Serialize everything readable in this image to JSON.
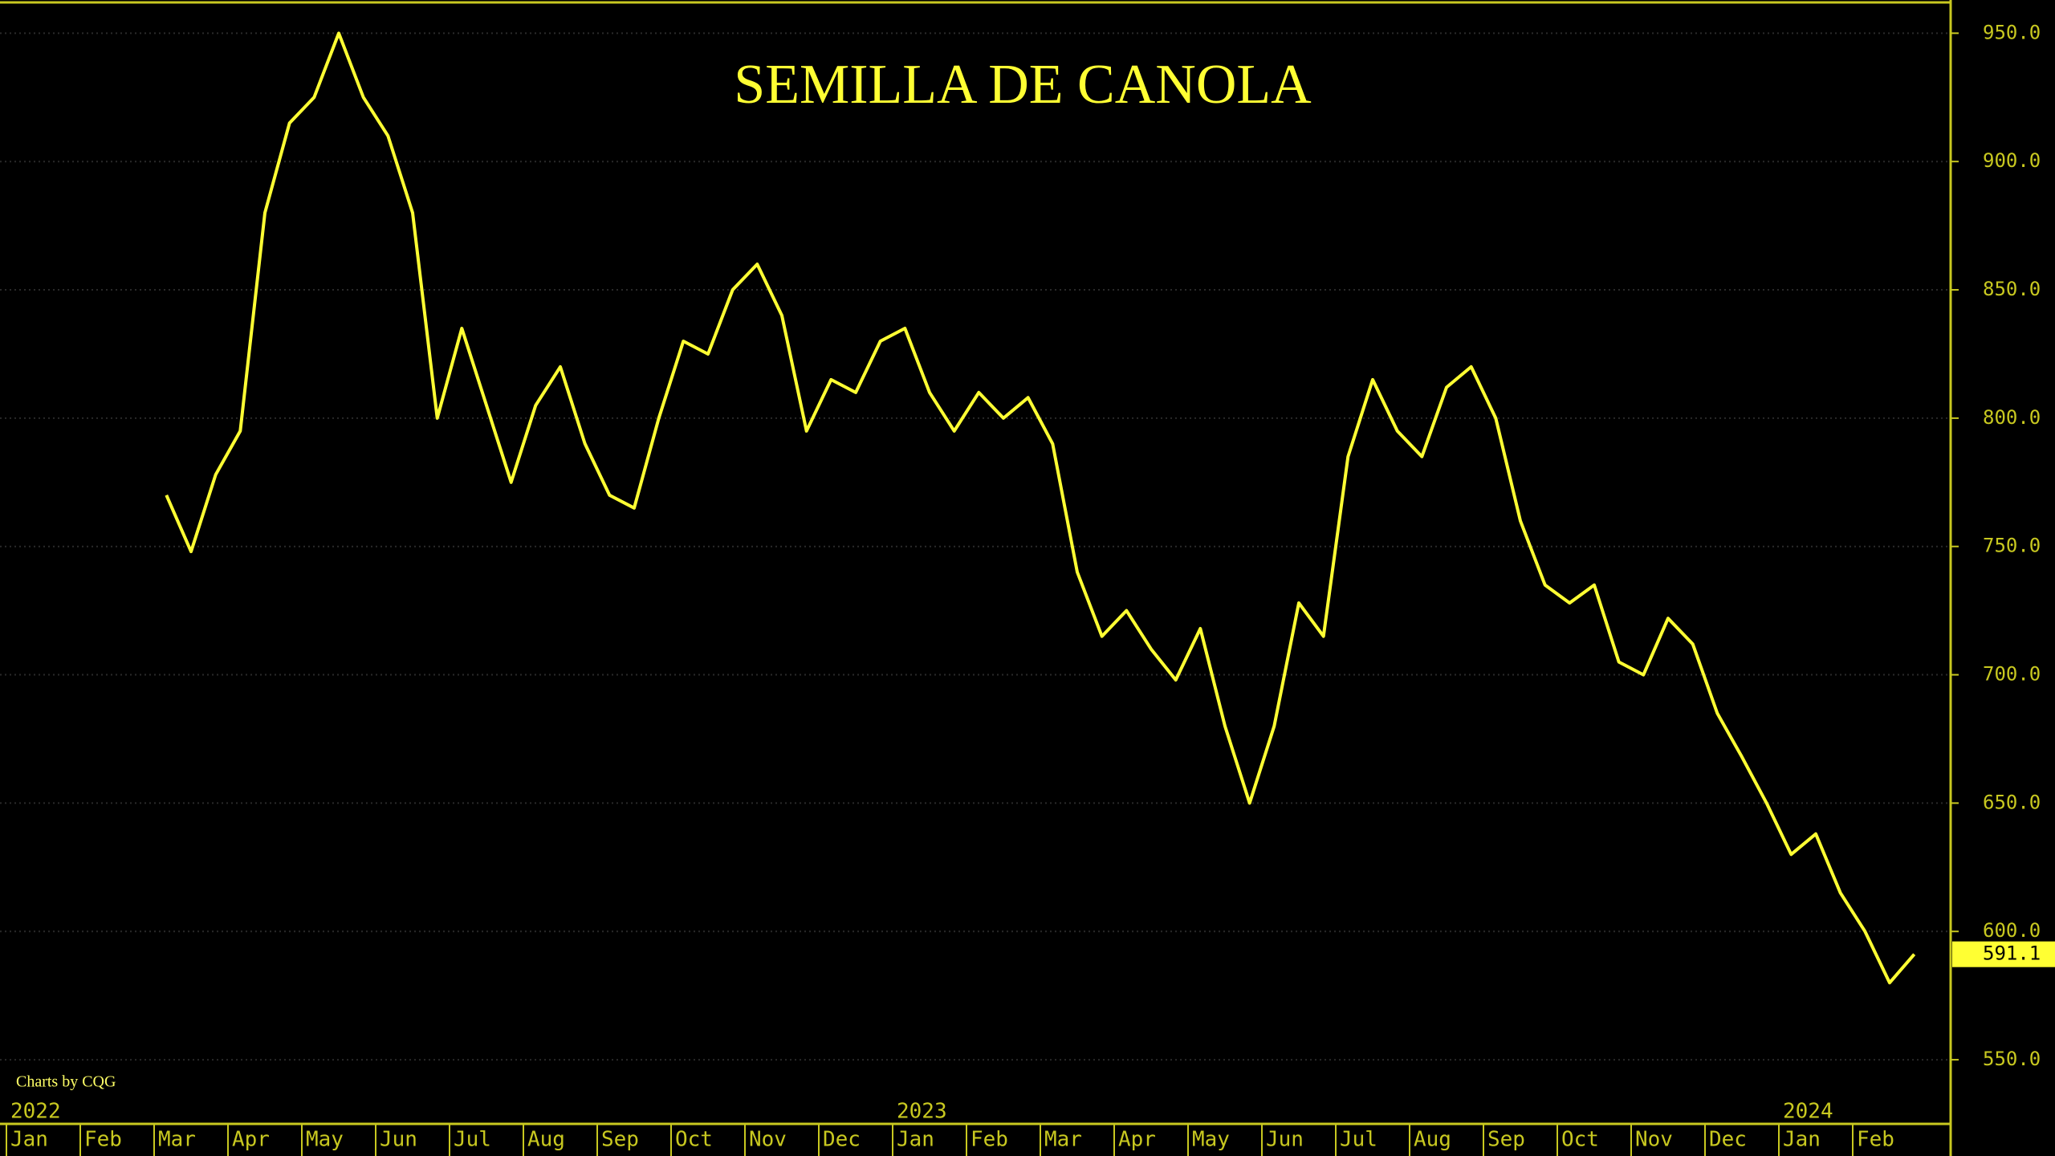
{
  "chart_data": {
    "type": "line",
    "title": "SEMILLA DE CANOLA",
    "source": "Charts by CQG",
    "x": [
      "2022-03",
      "2022-03",
      "2022-03",
      "2022-04",
      "2022-04",
      "2022-04",
      "2022-05",
      "2022-05",
      "2022-05",
      "2022-06",
      "2022-06",
      "2022-06",
      "2022-07",
      "2022-07",
      "2022-07",
      "2022-08",
      "2022-08",
      "2022-08",
      "2022-09",
      "2022-09",
      "2022-09",
      "2022-10",
      "2022-10",
      "2022-10",
      "2022-11",
      "2022-11",
      "2022-11",
      "2022-12",
      "2022-12",
      "2022-12",
      "2023-01",
      "2023-01",
      "2023-01",
      "2023-02",
      "2023-02",
      "2023-02",
      "2023-03",
      "2023-03",
      "2023-03",
      "2023-04",
      "2023-04",
      "2023-04",
      "2023-05",
      "2023-05",
      "2023-05",
      "2023-06",
      "2023-06",
      "2023-06",
      "2023-07",
      "2023-07",
      "2023-07",
      "2023-08",
      "2023-08",
      "2023-08",
      "2023-09",
      "2023-09",
      "2023-09",
      "2023-10",
      "2023-10",
      "2023-10",
      "2023-11",
      "2023-11",
      "2023-11",
      "2023-12",
      "2023-12",
      "2023-12",
      "2024-01",
      "2024-01",
      "2024-01",
      "2024-02",
      "2024-02",
      "2024-02"
    ],
    "series": [
      {
        "name": "Canola",
        "color": "#ffff33",
        "values": [
          770,
          748,
          778,
          795,
          880,
          915,
          925,
          950,
          925,
          910,
          880,
          800,
          835,
          805,
          775,
          805,
          820,
          790,
          770,
          765,
          800,
          830,
          825,
          850,
          860,
          840,
          795,
          815,
          810,
          830,
          835,
          810,
          795,
          810,
          800,
          808,
          790,
          740,
          715,
          725,
          710,
          698,
          718,
          680,
          650,
          680,
          728,
          715,
          785,
          815,
          795,
          785,
          812,
          820,
          800,
          760,
          735,
          728,
          735,
          705,
          700,
          722,
          712,
          685,
          668,
          650,
          630,
          638,
          615,
          600,
          580,
          591.1
        ]
      }
    ],
    "xlim": [
      "2022-01",
      "2024-03"
    ],
    "xticks": [
      {
        "value": "2022-01",
        "label": "Jan"
      },
      {
        "value": "2022-02",
        "label": "Feb"
      },
      {
        "value": "2022-03",
        "label": "Mar"
      },
      {
        "value": "2022-04",
        "label": "Apr"
      },
      {
        "value": "2022-05",
        "label": "May"
      },
      {
        "value": "2022-06",
        "label": "Jun"
      },
      {
        "value": "2022-07",
        "label": "Jul"
      },
      {
        "value": "2022-08",
        "label": "Aug"
      },
      {
        "value": "2022-09",
        "label": "Sep"
      },
      {
        "value": "2022-10",
        "label": "Oct"
      },
      {
        "value": "2022-11",
        "label": "Nov"
      },
      {
        "value": "2022-12",
        "label": "Dec"
      },
      {
        "value": "2023-01",
        "label": "Jan"
      },
      {
        "value": "2023-02",
        "label": "Feb"
      },
      {
        "value": "2023-03",
        "label": "Mar"
      },
      {
        "value": "2023-04",
        "label": "Apr"
      },
      {
        "value": "2023-05",
        "label": "May"
      },
      {
        "value": "2023-06",
        "label": "Jun"
      },
      {
        "value": "2023-07",
        "label": "Jul"
      },
      {
        "value": "2023-08",
        "label": "Aug"
      },
      {
        "value": "2023-09",
        "label": "Sep"
      },
      {
        "value": "2023-10",
        "label": "Oct"
      },
      {
        "value": "2023-11",
        "label": "Nov"
      },
      {
        "value": "2023-12",
        "label": "Dec"
      },
      {
        "value": "2024-01",
        "label": "Jan"
      },
      {
        "value": "2024-02",
        "label": "Feb"
      }
    ],
    "year_ticks": [
      {
        "value": "2022-01",
        "label": "2022"
      },
      {
        "value": "2023-01",
        "label": "2023"
      },
      {
        "value": "2024-01",
        "label": "2024"
      }
    ],
    "ylim": [
      525,
      962
    ],
    "yticks": [
      {
        "value": 550,
        "label": "550.0"
      },
      {
        "value": 600,
        "label": "600.0"
      },
      {
        "value": 650,
        "label": "650.0"
      },
      {
        "value": 700,
        "label": "700.0"
      },
      {
        "value": 750,
        "label": "750.0"
      },
      {
        "value": 800,
        "label": "800.0"
      },
      {
        "value": 850,
        "label": "850.0"
      },
      {
        "value": 900,
        "label": "900.0"
      },
      {
        "value": 950,
        "label": "950.0"
      }
    ],
    "grid": true
  }
}
